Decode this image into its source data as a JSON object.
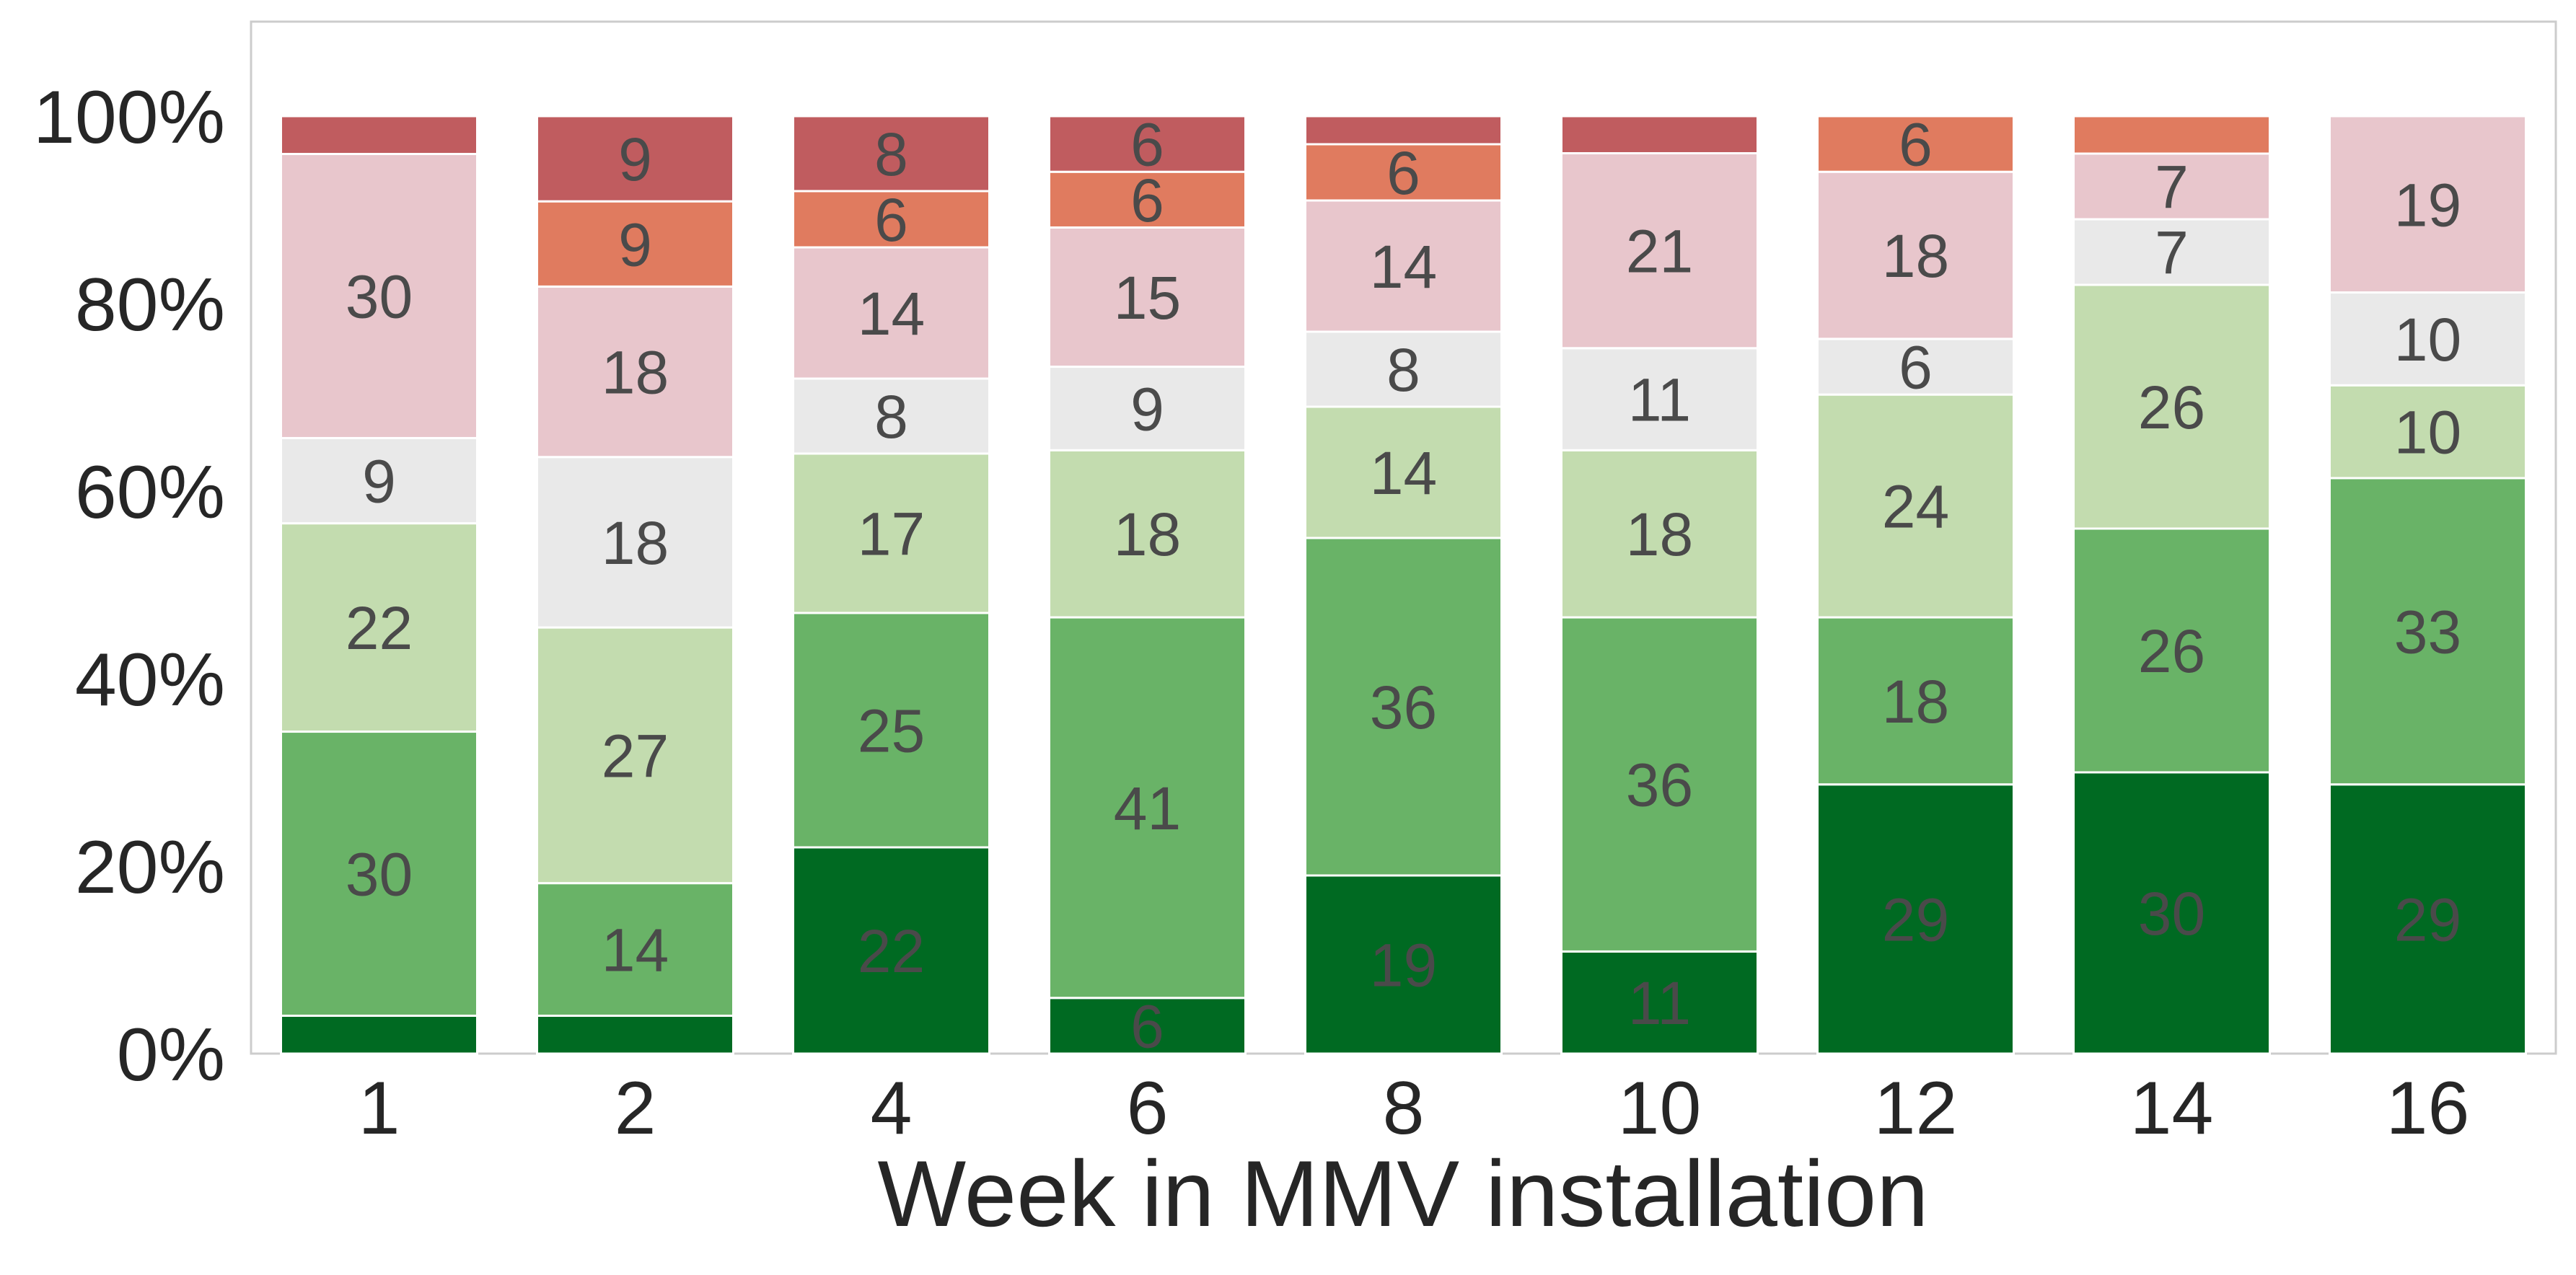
{
  "chart_data": {
    "type": "bar",
    "stacked": true,
    "normalized": true,
    "xlabel": "Week in MMV installation",
    "ylabel": "",
    "ylim": [
      0,
      110
    ],
    "yticks": [
      0,
      20,
      40,
      60,
      80,
      100
    ],
    "ytick_labels": [
      "0%",
      "20%",
      "40%",
      "60%",
      "80%",
      "100%"
    ],
    "grid": false,
    "legend": "none",
    "categories": [
      "1",
      "2",
      "4",
      "6",
      "8",
      "10",
      "12",
      "14",
      "16"
    ],
    "series": [
      {
        "color": "#006a22",
        "values": [
          4,
          4,
          22,
          6,
          19,
          11,
          29,
          30,
          29
        ],
        "labels": [
          "",
          "",
          "22",
          "6",
          "19",
          "11",
          "29",
          "30",
          "29"
        ]
      },
      {
        "color": "#69b367",
        "values": [
          30,
          14,
          25,
          41,
          36,
          36,
          18,
          26,
          33
        ],
        "labels": [
          "30",
          "14",
          "25",
          "41",
          "36",
          "36",
          "18",
          "26",
          "33"
        ]
      },
      {
        "color": "#c3dcaf",
        "values": [
          22,
          27,
          17,
          18,
          14,
          18,
          24,
          26,
          10
        ],
        "labels": [
          "22",
          "27",
          "17",
          "18",
          "14",
          "18",
          "24",
          "26",
          "10"
        ]
      },
      {
        "color": "#e9e9e9",
        "values": [
          9,
          18,
          8,
          9,
          8,
          11,
          6,
          7,
          10
        ],
        "labels": [
          "9",
          "18",
          "8",
          "9",
          "8",
          "11",
          "6",
          "7",
          "10"
        ]
      },
      {
        "color": "#e8c6cc",
        "values": [
          30,
          18,
          14,
          15,
          14,
          21,
          18,
          7,
          19
        ],
        "labels": [
          "30",
          "18",
          "14",
          "15",
          "14",
          "21",
          "18",
          "7",
          "19"
        ]
      },
      {
        "color": "#e07b5f",
        "values": [
          0,
          9,
          6,
          6,
          6,
          0,
          6,
          4,
          0
        ],
        "labels": [
          "",
          "9",
          "6",
          "6",
          "6",
          "",
          "6",
          "",
          ""
        ]
      },
      {
        "color": "#c05c5f",
        "values": [
          4,
          9,
          8,
          6,
          3,
          4,
          0,
          0,
          0
        ],
        "labels": [
          "",
          "9",
          "8",
          "6",
          "",
          "",
          "",
          "",
          ""
        ]
      }
    ]
  }
}
